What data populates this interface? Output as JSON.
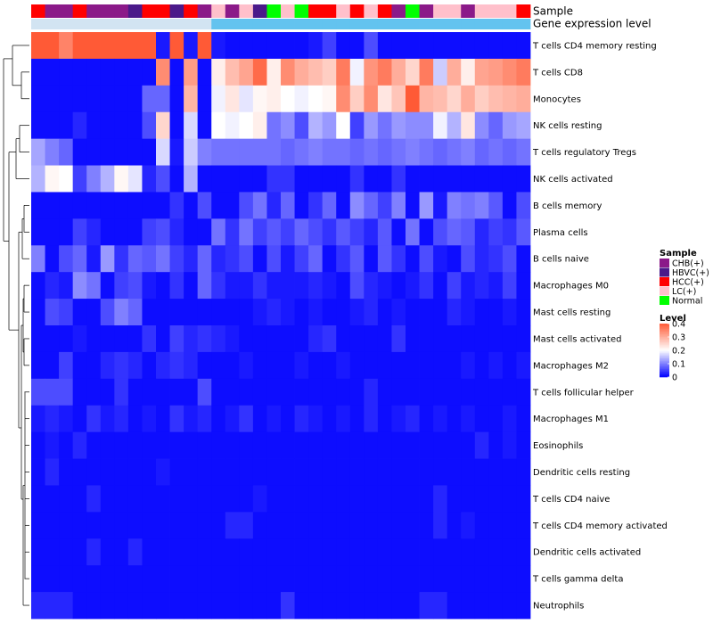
{
  "chart_data": {
    "type": "heatmap",
    "title": "",
    "annotation_tracks": [
      {
        "name": "Sample",
        "values": [
          "HCC(+)",
          "CHB(+)",
          "CHB(+)",
          "HCC(+)",
          "CHB(+)",
          "CHB(+)",
          "CHB(+)",
          "HBVC(+)",
          "HCC(+)",
          "HCC(+)",
          "HBVC(+)",
          "HCC(+)",
          "CHB(+)",
          "LC(+)",
          "CHB(+)",
          "LC(+)",
          "HBVC(+)",
          "Normal",
          "LC(+)",
          "Normal",
          "HCC(+)",
          "HCC(+)",
          "LC(+)",
          "HCC(+)",
          "LC(+)",
          "HCC(+)",
          "CHB(+)",
          "Normal",
          "CHB(+)",
          "LC(+)",
          "LC(+)",
          "CHB(+)",
          "LC(+)",
          "LC(+)",
          "LC(+)",
          "HCC(+)"
        ]
      },
      {
        "name": "Gene expression level",
        "values": [
          "Low",
          "Low",
          "Low",
          "Low",
          "Low",
          "Low",
          "Low",
          "Low",
          "Low",
          "Low",
          "Low",
          "Low",
          "Low",
          "High",
          "High",
          "High",
          "High",
          "High",
          "High",
          "High",
          "High",
          "High",
          "High",
          "High",
          "High",
          "High",
          "High",
          "High",
          "High",
          "High",
          "High",
          "High",
          "High",
          "High",
          "High",
          "High"
        ]
      }
    ],
    "rows": [
      "T cells CD4 memory resting",
      "T cells CD8",
      "Monocytes",
      "NK cells resting",
      "T cells regulatory  Tregs",
      "NK cells activated",
      "B cells memory",
      "Plasma cells",
      "B cells naive",
      "Macrophages M0",
      "Mast cells resting",
      "Mast cells activated",
      "Macrophages M2",
      "T cells follicular helper",
      "Macrophages M1",
      "Eosinophils",
      "Dendritic cells resting",
      "T cells CD4 naive",
      "T cells CD4 memory activated",
      "Dendritic cells activated",
      "T cells gamma delta",
      "Neutrophils"
    ],
    "n_columns": 36,
    "values": [
      [
        0.4,
        0.4,
        0.35,
        0.4,
        0.4,
        0.4,
        0.4,
        0.4,
        0.4,
        0.02,
        0.4,
        0.02,
        0.4,
        0.02,
        0.01,
        0.01,
        0.01,
        0.01,
        0.01,
        0.01,
        0.02,
        0.05,
        0.01,
        0.01,
        0.06,
        0.01,
        0.01,
        0.01,
        0.01,
        0.01,
        0.01,
        0.01,
        0.01,
        0.01,
        0.01,
        0.01
      ],
      [
        0.01,
        0.01,
        0.01,
        0.01,
        0.01,
        0.01,
        0.01,
        0.01,
        0.01,
        0.34,
        0.01,
        0.32,
        0.01,
        0.22,
        0.28,
        0.31,
        0.38,
        0.22,
        0.34,
        0.3,
        0.28,
        0.26,
        0.36,
        0.19,
        0.33,
        0.36,
        0.3,
        0.25,
        0.36,
        0.16,
        0.3,
        0.22,
        0.31,
        0.32,
        0.34,
        0.36
      ],
      [
        0.01,
        0.01,
        0.01,
        0.01,
        0.01,
        0.01,
        0.01,
        0.01,
        0.08,
        0.08,
        0.01,
        0.29,
        0.01,
        0.19,
        0.23,
        0.18,
        0.21,
        0.22,
        0.2,
        0.19,
        0.2,
        0.21,
        0.34,
        0.26,
        0.34,
        0.23,
        0.27,
        0.4,
        0.29,
        0.28,
        0.25,
        0.3,
        0.26,
        0.28,
        0.29,
        0.3
      ],
      [
        0.01,
        0.01,
        0.01,
        0.03,
        0.01,
        0.01,
        0.01,
        0.01,
        0.06,
        0.25,
        0.01,
        0.17,
        0.01,
        0.2,
        0.19,
        0.2,
        0.22,
        0.09,
        0.11,
        0.06,
        0.14,
        0.12,
        0.2,
        0.05,
        0.12,
        0.09,
        0.12,
        0.11,
        0.11,
        0.19,
        0.14,
        0.23,
        0.11,
        0.08,
        0.12,
        0.13
      ],
      [
        0.13,
        0.1,
        0.08,
        0.01,
        0.01,
        0.01,
        0.01,
        0.01,
        0.01,
        0.17,
        0.02,
        0.16,
        0.1,
        0.09,
        0.09,
        0.09,
        0.09,
        0.09,
        0.08,
        0.09,
        0.1,
        0.09,
        0.09,
        0.08,
        0.09,
        0.08,
        0.09,
        0.1,
        0.09,
        0.08,
        0.09,
        0.1,
        0.08,
        0.09,
        0.08,
        0.09
      ],
      [
        0.14,
        0.21,
        0.2,
        0.05,
        0.1,
        0.14,
        0.21,
        0.18,
        0.03,
        0.06,
        0.01,
        0.14,
        0.01,
        0.01,
        0.01,
        0.01,
        0.01,
        0.04,
        0.04,
        0.01,
        0.01,
        0.01,
        0.01,
        0.04,
        0.01,
        0.01,
        0.04,
        0.01,
        0.01,
        0.01,
        0.01,
        0.01,
        0.01,
        0.01,
        0.01,
        0.01
      ],
      [
        0.01,
        0.01,
        0.01,
        0.01,
        0.01,
        0.01,
        0.01,
        0.01,
        0.01,
        0.01,
        0.04,
        0.01,
        0.06,
        0.01,
        0.01,
        0.06,
        0.09,
        0.03,
        0.08,
        0.01,
        0.04,
        0.08,
        0.01,
        0.11,
        0.08,
        0.05,
        0.1,
        0.01,
        0.12,
        0.02,
        0.1,
        0.09,
        0.1,
        0.07,
        0.01,
        0.06
      ],
      [
        0.01,
        0.01,
        0.01,
        0.05,
        0.03,
        0.01,
        0.01,
        0.01,
        0.05,
        0.06,
        0.03,
        0.01,
        0.01,
        0.09,
        0.04,
        0.09,
        0.05,
        0.07,
        0.05,
        0.08,
        0.06,
        0.04,
        0.07,
        0.05,
        0.03,
        0.07,
        0.01,
        0.09,
        0.01,
        0.06,
        0.08,
        0.07,
        0.03,
        0.05,
        0.04,
        0.07
      ],
      [
        0.1,
        0.01,
        0.06,
        0.08,
        0.02,
        0.12,
        0.04,
        0.08,
        0.07,
        0.09,
        0.05,
        0.03,
        0.08,
        0.03,
        0.04,
        0.06,
        0.01,
        0.06,
        0.02,
        0.05,
        0.08,
        0.01,
        0.04,
        0.07,
        0.01,
        0.07,
        0.04,
        0.01,
        0.06,
        0.02,
        0.01,
        0.06,
        0.03,
        0.04,
        0.06,
        0.01
      ],
      [
        0.01,
        0.03,
        0.02,
        0.11,
        0.09,
        0.01,
        0.05,
        0.06,
        0.02,
        0.01,
        0.04,
        0.01,
        0.08,
        0.04,
        0.02,
        0.02,
        0.04,
        0.02,
        0.02,
        0.02,
        0.03,
        0.02,
        0.01,
        0.06,
        0.03,
        0.02,
        0.01,
        0.02,
        0.04,
        0.01,
        0.05,
        0.02,
        0.03,
        0.02,
        0.05,
        0.01
      ],
      [
        0.01,
        0.06,
        0.05,
        0.01,
        0.01,
        0.06,
        0.1,
        0.08,
        0.01,
        0.01,
        0.01,
        0.01,
        0.01,
        0.01,
        0.01,
        0.01,
        0.02,
        0.03,
        0.02,
        0.01,
        0.02,
        0.01,
        0.01,
        0.02,
        0.03,
        0.01,
        0.02,
        0.01,
        0.01,
        0.01,
        0.03,
        0.02,
        0.01,
        0.01,
        0.02,
        0.01
      ],
      [
        0.01,
        0.01,
        0.01,
        0.02,
        0.01,
        0.01,
        0.01,
        0.01,
        0.04,
        0.01,
        0.05,
        0.03,
        0.04,
        0.03,
        0.02,
        0.01,
        0.01,
        0.01,
        0.01,
        0.01,
        0.03,
        0.04,
        0.01,
        0.01,
        0.01,
        0.01,
        0.04,
        0.01,
        0.01,
        0.01,
        0.01,
        0.01,
        0.01,
        0.01,
        0.01,
        0.01
      ],
      [
        0.01,
        0.01,
        0.05,
        0.01,
        0.01,
        0.03,
        0.04,
        0.03,
        0.01,
        0.03,
        0.04,
        0.03,
        0.01,
        0.01,
        0.01,
        0.02,
        0.01,
        0.01,
        0.01,
        0.02,
        0.01,
        0.01,
        0.02,
        0.01,
        0.01,
        0.01,
        0.01,
        0.01,
        0.01,
        0.01,
        0.01,
        0.02,
        0.01,
        0.02,
        0.01,
        0.02
      ],
      [
        0.06,
        0.06,
        0.06,
        0.01,
        0.01,
        0.01,
        0.04,
        0.01,
        0.01,
        0.01,
        0.01,
        0.01,
        0.06,
        0.01,
        0.01,
        0.01,
        0.01,
        0.01,
        0.01,
        0.01,
        0.01,
        0.01,
        0.01,
        0.01,
        0.03,
        0.01,
        0.01,
        0.01,
        0.01,
        0.01,
        0.01,
        0.01,
        0.01,
        0.01,
        0.01,
        0.01
      ],
      [
        0.02,
        0.03,
        0.02,
        0.01,
        0.04,
        0.02,
        0.03,
        0.01,
        0.02,
        0.01,
        0.04,
        0.02,
        0.03,
        0.01,
        0.02,
        0.04,
        0.01,
        0.02,
        0.01,
        0.03,
        0.02,
        0.01,
        0.02,
        0.01,
        0.03,
        0.01,
        0.02,
        0.03,
        0.01,
        0.02,
        0.01,
        0.02,
        0.01,
        0.01,
        0.02,
        0.01
      ],
      [
        0.01,
        0.02,
        0.01,
        0.03,
        0.01,
        0.01,
        0.01,
        0.01,
        0.01,
        0.01,
        0.01,
        0.01,
        0.01,
        0.01,
        0.01,
        0.01,
        0.01,
        0.01,
        0.01,
        0.01,
        0.01,
        0.01,
        0.01,
        0.01,
        0.01,
        0.01,
        0.01,
        0.01,
        0.01,
        0.01,
        0.01,
        0.01,
        0.03,
        0.01,
        0.02,
        0.01
      ],
      [
        0.01,
        0.03,
        0.01,
        0.01,
        0.01,
        0.01,
        0.01,
        0.01,
        0.01,
        0.02,
        0.01,
        0.01,
        0.01,
        0.01,
        0.01,
        0.01,
        0.01,
        0.01,
        0.01,
        0.01,
        0.01,
        0.01,
        0.01,
        0.01,
        0.01,
        0.01,
        0.01,
        0.01,
        0.01,
        0.01,
        0.01,
        0.01,
        0.01,
        0.01,
        0.01,
        0.01
      ],
      [
        0.01,
        0.01,
        0.01,
        0.01,
        0.03,
        0.01,
        0.01,
        0.01,
        0.01,
        0.01,
        0.01,
        0.01,
        0.01,
        0.01,
        0.01,
        0.01,
        0.02,
        0.01,
        0.01,
        0.01,
        0.01,
        0.01,
        0.01,
        0.01,
        0.01,
        0.01,
        0.01,
        0.01,
        0.01,
        0.03,
        0.01,
        0.01,
        0.01,
        0.01,
        0.01,
        0.01
      ],
      [
        0.01,
        0.01,
        0.01,
        0.01,
        0.01,
        0.01,
        0.01,
        0.01,
        0.01,
        0.01,
        0.01,
        0.01,
        0.01,
        0.01,
        0.03,
        0.03,
        0.01,
        0.01,
        0.01,
        0.01,
        0.01,
        0.01,
        0.01,
        0.01,
        0.01,
        0.01,
        0.01,
        0.01,
        0.01,
        0.03,
        0.01,
        0.02,
        0.01,
        0.01,
        0.01,
        0.01
      ],
      [
        0.01,
        0.01,
        0.01,
        0.01,
        0.03,
        0.01,
        0.01,
        0.03,
        0.01,
        0.01,
        0.01,
        0.01,
        0.01,
        0.01,
        0.01,
        0.01,
        0.01,
        0.01,
        0.01,
        0.01,
        0.01,
        0.01,
        0.01,
        0.01,
        0.01,
        0.01,
        0.01,
        0.01,
        0.01,
        0.01,
        0.01,
        0.01,
        0.01,
        0.01,
        0.01,
        0.01
      ],
      [
        0.01,
        0.01,
        0.01,
        0.01,
        0.01,
        0.01,
        0.01,
        0.01,
        0.01,
        0.01,
        0.01,
        0.01,
        0.01,
        0.01,
        0.01,
        0.01,
        0.01,
        0.01,
        0.01,
        0.01,
        0.01,
        0.01,
        0.01,
        0.01,
        0.01,
        0.01,
        0.01,
        0.01,
        0.01,
        0.01,
        0.01,
        0.01,
        0.01,
        0.01,
        0.01,
        0.01
      ],
      [
        0.03,
        0.03,
        0.03,
        0.01,
        0.01,
        0.01,
        0.01,
        0.01,
        0.01,
        0.01,
        0.01,
        0.01,
        0.01,
        0.01,
        0.01,
        0.01,
        0.01,
        0.01,
        0.04,
        0.01,
        0.01,
        0.01,
        0.01,
        0.01,
        0.01,
        0.01,
        0.01,
        0.01,
        0.03,
        0.03,
        0.01,
        0.01,
        0.01,
        0.01,
        0.01,
        0.01
      ]
    ],
    "legends": {
      "sample": {
        "title": "Sample",
        "entries": [
          {
            "label": "CHB(+)",
            "color": "#8b1a89"
          },
          {
            "label": "HBVC(+)",
            "color": "#4b1a8a"
          },
          {
            "label": "HCC(+)",
            "color": "#ff0000"
          },
          {
            "label": "LC(+)",
            "color": "#ffc0cb"
          },
          {
            "label": "Normal",
            "color": "#00ff00"
          }
        ]
      },
      "level": {
        "title": "Level",
        "ticks": [
          "0.4",
          "0.3",
          "0.2",
          "0.1",
          "0"
        ],
        "tick_values": [
          0.4,
          0.3,
          0.2,
          0.1,
          0
        ],
        "range": [
          0,
          0.4
        ]
      }
    },
    "gene_level_colors": {
      "Low": "#d2e4f2",
      "High": "#63c3ef"
    },
    "color_scale": {
      "low": "#0000ff",
      "mid": "#ffffff",
      "high": "#ff5a36",
      "mid_value": 0.2
    }
  }
}
